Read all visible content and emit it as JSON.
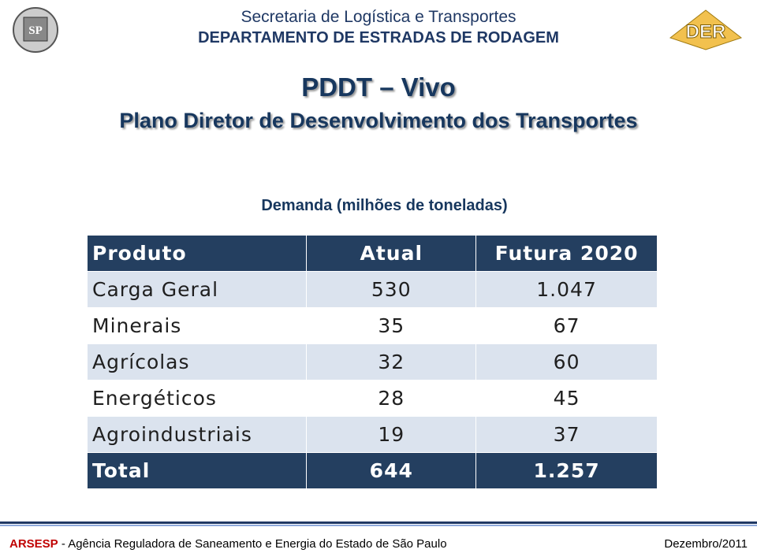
{
  "header": {
    "line1": "Secretaria de Logística e Transportes",
    "line2": "DEPARTAMENTO DE ESTRADAS DE RODAGEM",
    "logo_left": "SP",
    "logo_right": "DER"
  },
  "title": "PDDT – Vivo",
  "subtitle": "Plano Diretor de Desenvolvimento dos Transportes",
  "table": {
    "caption": "Demanda (milhões de toneladas)",
    "columns": [
      "Produto",
      "Atual",
      "Futura 2020"
    ],
    "rows": [
      [
        "Carga Geral",
        "530",
        "1.047"
      ],
      [
        "Minerais",
        "35",
        "67"
      ],
      [
        "Agrícolas",
        "32",
        "60"
      ],
      [
        "Energéticos",
        "28",
        "45"
      ],
      [
        "Agroindustriais",
        "19",
        "37"
      ]
    ],
    "total": [
      "Total",
      "644",
      "1.257"
    ]
  },
  "footer": {
    "org": "ARSESP",
    "org_name": "- Agência Reguladora de Saneamento e Energia do Estado de São Paulo",
    "date": "Dezembro/2011"
  }
}
